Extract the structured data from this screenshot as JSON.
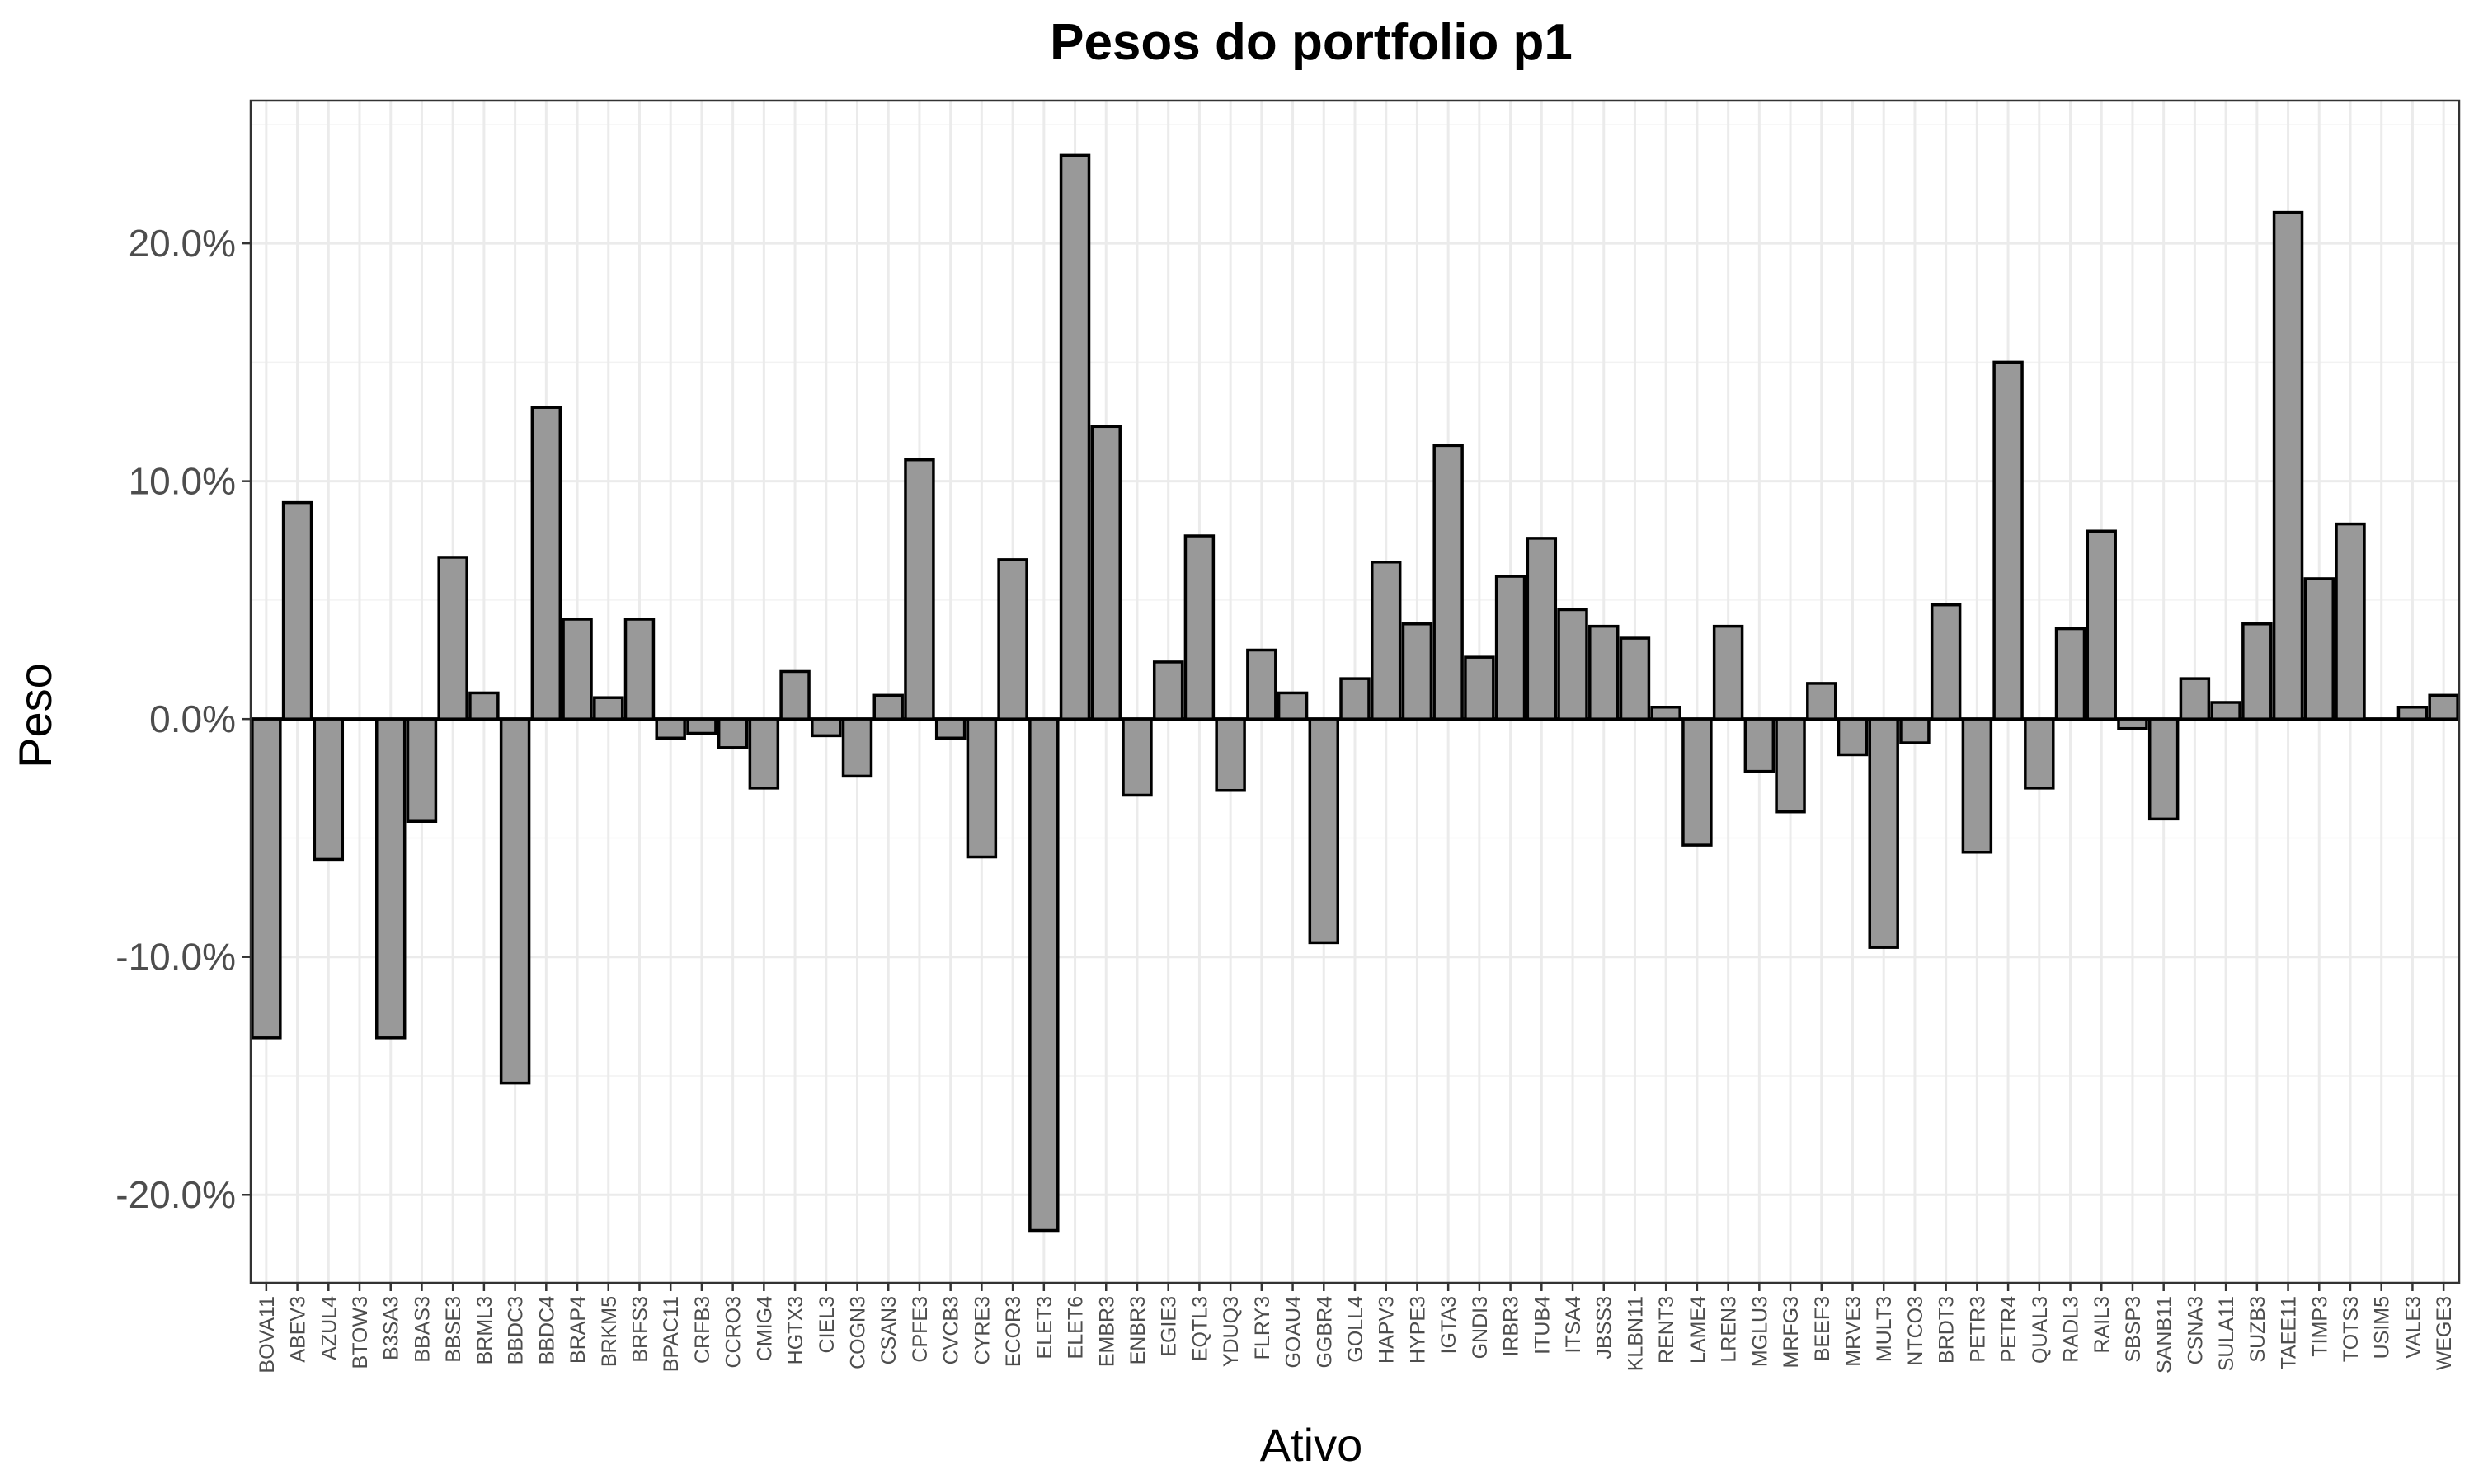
{
  "chart_data": {
    "type": "bar",
    "title": "Pesos do portfolio p1",
    "xlabel": "Ativo",
    "ylabel": "Peso",
    "ylim": [
      -23.7,
      26.0
    ],
    "y_ticks": [
      {
        "value": 20,
        "label": "20.0%"
      },
      {
        "value": 10,
        "label": "10.0%"
      },
      {
        "value": 0,
        "label": "0.0%"
      },
      {
        "value": -10,
        "label": "-10.0%"
      },
      {
        "value": -20,
        "label": "-20.0%"
      }
    ],
    "grid": true,
    "legend": "none",
    "colors": {
      "bar_fill": "#999999",
      "bar_stroke": "#000000",
      "grid": "#ebebeb"
    },
    "categories": [
      "BOVA11",
      "ABEV3",
      "AZUL4",
      "BTOW3",
      "B3SA3",
      "BBAS3",
      "BBSE3",
      "BRML3",
      "BBDC3",
      "BBDC4",
      "BRAP4",
      "BRKM5",
      "BRFS3",
      "BPAC11",
      "CRFB3",
      "CCRO3",
      "CMIG4",
      "HGTX3",
      "CIEL3",
      "COGN3",
      "CSAN3",
      "CPFE3",
      "CVCB3",
      "CYRE3",
      "ECOR3",
      "ELET3",
      "ELET6",
      "EMBR3",
      "ENBR3",
      "EGIE3",
      "EQTL3",
      "YDUQ3",
      "FLRY3",
      "GOAU4",
      "GGBR4",
      "GOLL4",
      "HAPV3",
      "HYPE3",
      "IGTA3",
      "GNDI3",
      "IRBR3",
      "ITUB4",
      "ITSA4",
      "JBSS3",
      "KLBN11",
      "RENT3",
      "LAME4",
      "LREN3",
      "MGLU3",
      "MRFG3",
      "BEEF3",
      "MRVE3",
      "MULT3",
      "NTCO3",
      "BRDT3",
      "PETR3",
      "PETR4",
      "QUAL3",
      "RADL3",
      "RAIL3",
      "SBSP3",
      "SANB11",
      "CSNA3",
      "SULA11",
      "SUZB3",
      "TAEE11",
      "TIMP3",
      "TOTS3",
      "USIM5",
      "VALE3",
      "WEGE3"
    ],
    "values": [
      -13.4,
      9.1,
      -5.9,
      0.0,
      -13.4,
      -4.3,
      6.8,
      1.1,
      -15.3,
      13.1,
      4.2,
      0.9,
      4.2,
      -0.8,
      -0.6,
      -1.2,
      -2.9,
      2.0,
      -0.7,
      -2.4,
      1.0,
      10.9,
      -0.8,
      -5.8,
      6.7,
      -21.5,
      23.7,
      12.3,
      -3.2,
      2.4,
      7.7,
      -3.0,
      2.9,
      1.1,
      -9.4,
      1.7,
      6.6,
      4.0,
      11.5,
      2.6,
      6.0,
      7.6,
      4.6,
      3.9,
      3.4,
      0.5,
      -5.3,
      3.9,
      -2.2,
      -3.9,
      1.5,
      -1.5,
      -9.6,
      -1.0,
      4.8,
      -5.6,
      15.0,
      -2.9,
      3.8,
      7.9,
      -0.4,
      -4.2,
      1.7,
      0.7,
      4.0,
      21.3,
      5.9,
      8.2,
      0.0,
      0.5,
      1.0
    ]
  }
}
